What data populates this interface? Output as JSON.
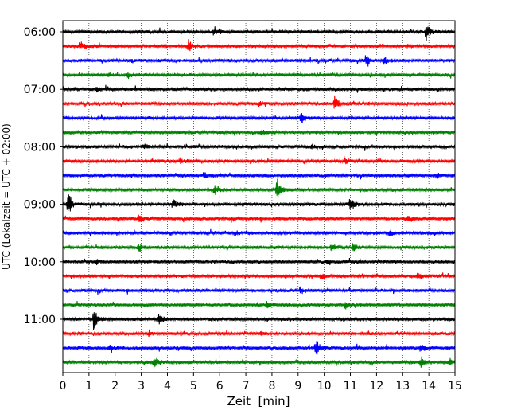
{
  "chart_data": {
    "type": "line",
    "title": "",
    "xlabel": "Zeit  [min]",
    "ylabel": "UTC (Lokalzeit = UTC + 02:00)",
    "x_ticks": [
      0,
      1,
      2,
      3,
      4,
      5,
      6,
      7,
      8,
      9,
      10,
      11,
      12,
      13,
      14,
      15
    ],
    "x_tick_labels": [
      "0",
      "1",
      "2",
      "3",
      "4",
      "5",
      "6",
      "7",
      "8",
      "9",
      "10",
      "11",
      "12",
      "13",
      "14",
      "15"
    ],
    "xlim": [
      0,
      15
    ],
    "y_tick_labels": [
      "06:00",
      "07:00",
      "08:00",
      "09:00",
      "10:00",
      "11:00"
    ],
    "y_tick_trace_index": [
      0,
      4,
      8,
      12,
      16,
      20
    ],
    "trace_minutes": 15,
    "trace_start_first": "06:00",
    "trace_colors_cycle": [
      "#000000",
      "#ff0000",
      "#0000ff",
      "#008000"
    ],
    "grid": "vertical dotted",
    "traces": [
      {
        "start": "06:00",
        "color": "#000000",
        "events": [
          {
            "t": 5.8,
            "amp": 0.45
          },
          {
            "t": 13.9,
            "amp": 0.8
          }
        ]
      },
      {
        "start": "06:15",
        "color": "#ff0000",
        "events": [
          {
            "t": 0.7,
            "amp": 0.35
          },
          {
            "t": 4.8,
            "amp": 0.55
          }
        ]
      },
      {
        "start": "06:30",
        "color": "#0000ff",
        "events": [
          {
            "t": 11.6,
            "amp": 0.5
          },
          {
            "t": 12.3,
            "amp": 0.3
          }
        ]
      },
      {
        "start": "06:45",
        "color": "#008000",
        "events": [
          {
            "t": 1.7,
            "amp": 0.3
          },
          {
            "t": 2.5,
            "amp": 0.25
          }
        ]
      },
      {
        "start": "07:00",
        "color": "#000000",
        "events": [
          {
            "t": 1.3,
            "amp": 0.25
          }
        ]
      },
      {
        "start": "07:15",
        "color": "#ff0000",
        "events": [
          {
            "t": 7.5,
            "amp": 0.3
          },
          {
            "t": 10.4,
            "amp": 0.75
          }
        ]
      },
      {
        "start": "07:30",
        "color": "#0000ff",
        "events": [
          {
            "t": 9.1,
            "amp": 0.6
          }
        ]
      },
      {
        "start": "07:45",
        "color": "#008000",
        "events": [
          {
            "t": 7.6,
            "amp": 0.3
          }
        ]
      },
      {
        "start": "08:00",
        "color": "#000000",
        "events": [
          {
            "t": 3.1,
            "amp": 0.25
          },
          {
            "t": 9.5,
            "amp": 0.2
          }
        ]
      },
      {
        "start": "08:15",
        "color": "#ff0000",
        "events": [
          {
            "t": 4.5,
            "amp": 0.25
          },
          {
            "t": 10.8,
            "amp": 0.25
          }
        ]
      },
      {
        "start": "08:30",
        "color": "#0000ff",
        "events": [
          {
            "t": 5.4,
            "amp": 0.3
          },
          {
            "t": 14.3,
            "amp": 0.25
          }
        ]
      },
      {
        "start": "08:45",
        "color": "#008000",
        "events": [
          {
            "t": 5.8,
            "amp": 0.55
          },
          {
            "t": 8.2,
            "amp": 1.0
          }
        ]
      },
      {
        "start": "09:00",
        "color": "#000000",
        "events": [
          {
            "t": 0.2,
            "amp": 1.2
          },
          {
            "t": 4.2,
            "amp": 0.5
          },
          {
            "t": 11.0,
            "amp": 0.65
          }
        ]
      },
      {
        "start": "09:15",
        "color": "#ff0000",
        "events": [
          {
            "t": 2.9,
            "amp": 0.45
          },
          {
            "t": 13.2,
            "amp": 0.2
          }
        ]
      },
      {
        "start": "09:30",
        "color": "#0000ff",
        "events": [
          {
            "t": 6.6,
            "amp": 0.25
          },
          {
            "t": 12.5,
            "amp": 0.3
          }
        ]
      },
      {
        "start": "09:45",
        "color": "#008000",
        "events": [
          {
            "t": 2.9,
            "amp": 0.35
          },
          {
            "t": 10.3,
            "amp": 0.55
          },
          {
            "t": 11.1,
            "amp": 0.45
          }
        ]
      },
      {
        "start": "10:00",
        "color": "#000000",
        "events": [
          {
            "t": 1.3,
            "amp": 0.2
          },
          {
            "t": 10.1,
            "amp": 0.2
          }
        ]
      },
      {
        "start": "10:15",
        "color": "#ff0000",
        "events": [
          {
            "t": 9.9,
            "amp": 0.25
          },
          {
            "t": 13.6,
            "amp": 0.3
          }
        ]
      },
      {
        "start": "10:30",
        "color": "#0000ff",
        "events": [
          {
            "t": 9.1,
            "amp": 0.3
          }
        ]
      },
      {
        "start": "10:45",
        "color": "#008000",
        "events": [
          {
            "t": 7.8,
            "amp": 0.35
          },
          {
            "t": 10.8,
            "amp": 0.25
          }
        ]
      },
      {
        "start": "11:00",
        "color": "#000000",
        "events": [
          {
            "t": 1.2,
            "amp": 1.0
          },
          {
            "t": 3.7,
            "amp": 0.6
          }
        ]
      },
      {
        "start": "11:15",
        "color": "#ff0000",
        "events": [
          {
            "t": 3.3,
            "amp": 0.25
          },
          {
            "t": 7.6,
            "amp": 0.2
          }
        ]
      },
      {
        "start": "11:30",
        "color": "#0000ff",
        "events": [
          {
            "t": 1.8,
            "amp": 0.35
          },
          {
            "t": 9.7,
            "amp": 0.85
          },
          {
            "t": 13.7,
            "amp": 0.45
          }
        ]
      },
      {
        "start": "11:45",
        "color": "#008000",
        "events": [
          {
            "t": 3.5,
            "amp": 0.55
          },
          {
            "t": 13.7,
            "amp": 0.6
          },
          {
            "t": 14.8,
            "amp": 0.35
          }
        ]
      }
    ]
  }
}
